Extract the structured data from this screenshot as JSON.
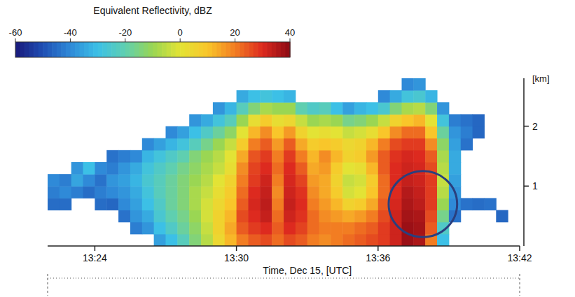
{
  "chart_data": {
    "type": "heatmap",
    "x_label": "Time, Dec 15, [UTC]",
    "y_label": "[km]",
    "xlim": [
      802,
      822
    ],
    "ylim": [
      0,
      2.8
    ],
    "xticks": [
      {
        "value": 804,
        "label": "13:24"
      },
      {
        "value": 810,
        "label": "13:30"
      },
      {
        "value": 816,
        "label": "13:36"
      },
      {
        "value": 822,
        "label": "13:42"
      }
    ],
    "yticks": [
      1,
      2
    ],
    "x_bins": [
      802,
      802.5,
      803,
      803.5,
      804,
      804.5,
      805,
      805.5,
      806,
      806.5,
      807,
      807.5,
      808,
      808.5,
      809,
      809.5,
      810,
      810.5,
      811,
      811.5,
      812,
      812.5,
      813,
      813.5,
      814,
      814.5,
      815,
      815.5,
      816,
      816.5,
      817,
      817.5,
      818,
      818.5,
      819,
      819.5,
      820,
      820.5,
      821,
      821.5,
      822
    ],
    "y_bins": [
      0,
      0.2,
      0.4,
      0.6,
      0.8,
      1.0,
      1.2,
      1.4,
      1.6,
      1.8,
      2.0,
      2.2,
      2.4,
      2.6,
      2.8
    ],
    "z": [
      [
        null,
        null,
        null,
        -45,
        -42,
        -40,
        null,
        null,
        null,
        null,
        null,
        null,
        null,
        null
      ],
      [
        null,
        null,
        null,
        -45,
        -40,
        -42,
        null,
        null,
        null,
        null,
        null,
        null,
        null,
        null
      ],
      [
        null,
        null,
        null,
        null,
        -42,
        -35,
        -38,
        null,
        null,
        null,
        null,
        null,
        null,
        null
      ],
      [
        null,
        null,
        null,
        null,
        -45,
        -40,
        -30,
        null,
        null,
        null,
        null,
        null,
        null,
        null
      ],
      [
        null,
        null,
        null,
        -45,
        -42,
        -44,
        -40,
        null,
        null,
        null,
        null,
        null,
        null,
        null
      ],
      [
        null,
        null,
        null,
        -46,
        -40,
        -38,
        -42,
        -44,
        null,
        null,
        null,
        null,
        null,
        null
      ],
      [
        null,
        null,
        -44,
        -40,
        -38,
        -36,
        -38,
        -42,
        null,
        null,
        null,
        null,
        null,
        null
      ],
      [
        null,
        -42,
        -38,
        -36,
        -34,
        -32,
        -34,
        -40,
        null,
        null,
        null,
        null,
        null,
        null
      ],
      [
        null,
        -38,
        -34,
        -30,
        -28,
        -26,
        -28,
        -32,
        -40,
        null,
        null,
        null,
        null,
        null
      ],
      [
        -36,
        -30,
        -26,
        -24,
        -22,
        -22,
        -24,
        -28,
        -36,
        null,
        null,
        null,
        null,
        null
      ],
      [
        -30,
        -24,
        -20,
        -18,
        -18,
        -18,
        -20,
        -24,
        -32,
        -40,
        null,
        null,
        null,
        null
      ],
      [
        -22,
        -18,
        -16,
        -14,
        -14,
        -14,
        -16,
        -20,
        -28,
        -36,
        null,
        null,
        null,
        null
      ],
      [
        -14,
        -12,
        -10,
        -8,
        -8,
        -10,
        -12,
        -14,
        -22,
        -30,
        -38,
        null,
        null,
        null
      ],
      [
        -6,
        -4,
        -2,
        -2,
        -4,
        -6,
        -8,
        -10,
        -16,
        -24,
        -34,
        null,
        null,
        null
      ],
      [
        4,
        6,
        6,
        4,
        2,
        0,
        -4,
        -6,
        -10,
        -18,
        -28,
        -38,
        null,
        null
      ],
      [
        12,
        14,
        12,
        10,
        8,
        6,
        2,
        0,
        -4,
        -12,
        -22,
        -32,
        null,
        null
      ],
      [
        20,
        24,
        26,
        24,
        22,
        20,
        18,
        14,
        8,
        0,
        -10,
        -22,
        -34,
        null
      ],
      [
        24,
        28,
        30,
        31,
        30,
        28,
        27,
        25,
        20,
        12,
        2,
        -14,
        -30,
        null
      ],
      [
        26,
        30,
        33,
        34,
        33,
        32,
        30,
        28,
        24,
        18,
        8,
        -8,
        -28,
        null
      ],
      [
        22,
        24,
        22,
        20,
        18,
        20,
        22,
        20,
        16,
        10,
        2,
        -10,
        -30,
        null
      ],
      [
        26,
        30,
        32,
        33,
        32,
        31,
        30,
        28,
        24,
        16,
        4,
        -10,
        -32,
        null
      ],
      [
        24,
        27,
        29,
        30,
        29,
        27,
        24,
        20,
        14,
        6,
        -4,
        -20,
        null,
        null
      ],
      [
        20,
        22,
        22,
        20,
        18,
        16,
        14,
        12,
        8,
        0,
        -10,
        -24,
        null,
        null
      ],
      [
        18,
        20,
        18,
        16,
        14,
        14,
        16,
        18,
        10,
        2,
        -8,
        -22,
        null,
        null
      ],
      [
        20,
        20,
        16,
        12,
        8,
        6,
        8,
        12,
        8,
        0,
        -10,
        -30,
        null,
        null
      ],
      [
        22,
        20,
        14,
        6,
        -2,
        -4,
        0,
        6,
        4,
        -4,
        -16,
        -36,
        null,
        null
      ],
      [
        24,
        22,
        16,
        8,
        0,
        -2,
        2,
        8,
        6,
        -2,
        -14,
        -32,
        null,
        null
      ],
      [
        26,
        24,
        20,
        14,
        10,
        8,
        12,
        16,
        12,
        2,
        -10,
        -30,
        null,
        null
      ],
      [
        28,
        28,
        26,
        24,
        22,
        22,
        24,
        24,
        20,
        10,
        -4,
        -26,
        -40,
        null
      ],
      [
        32,
        32,
        32,
        31,
        30,
        30,
        30,
        29,
        26,
        18,
        6,
        -14,
        -34,
        null
      ],
      [
        38,
        38,
        37,
        36,
        35,
        33,
        32,
        31,
        28,
        22,
        10,
        -8,
        -28,
        -40
      ],
      [
        36,
        37,
        36,
        34,
        33,
        32,
        31,
        30,
        28,
        22,
        12,
        -6,
        -26,
        -38
      ],
      [
        20,
        24,
        26,
        28,
        28,
        28,
        26,
        24,
        18,
        10,
        0,
        -14,
        -32,
        null
      ],
      [
        -30,
        -24,
        -16,
        -10,
        -6,
        -4,
        -6,
        -8,
        -12,
        -18,
        -28,
        -38,
        null,
        null
      ],
      [
        null,
        null,
        -44,
        -40,
        -38,
        -36,
        -34,
        -34,
        -36,
        -38,
        -42,
        null,
        null,
        null
      ],
      [
        null,
        null,
        null,
        -44,
        null,
        null,
        null,
        null,
        -44,
        -42,
        -44,
        null,
        null,
        null
      ],
      [
        null,
        null,
        null,
        -45,
        null,
        null,
        null,
        null,
        null,
        -46,
        -46,
        null,
        null,
        null
      ],
      [
        null,
        null,
        null,
        -44,
        null,
        null,
        null,
        null,
        null,
        null,
        null,
        null,
        null,
        null
      ],
      [
        null,
        null,
        -46,
        null,
        null,
        null,
        null,
        null,
        null,
        null,
        null,
        null,
        null,
        null
      ],
      [
        null,
        null,
        null,
        null,
        null,
        null,
        null,
        null,
        null,
        null,
        null,
        null,
        null,
        null
      ]
    ],
    "colorbar": {
      "title": "Equivalent Reflectivity, dBZ",
      "range": [
        -60,
        40
      ],
      "ticks": [
        -60,
        -40,
        -20,
        0,
        20,
        40
      ]
    },
    "highlight": {
      "x": [
        816.45,
        819.35
      ],
      "y": [
        0.15,
        1.25
      ]
    }
  }
}
